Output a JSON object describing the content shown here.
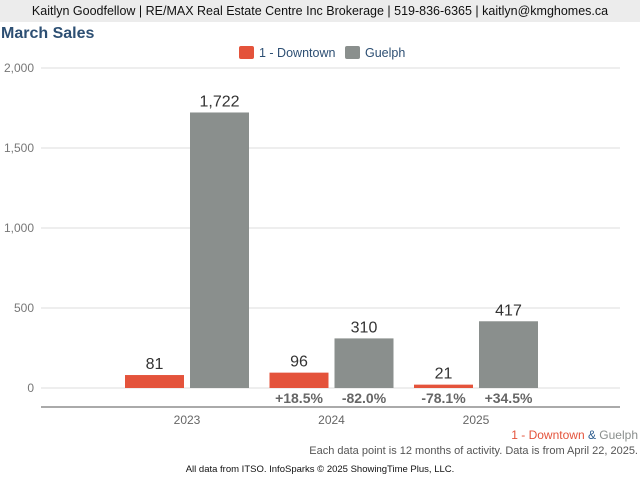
{
  "header": {
    "contact_line": "Kaitlyn Goodfellow | RE/MAX Real Estate Centre Inc Brokerage | 519-836-6365 | kaitlyn@kmghomes.ca"
  },
  "colors": {
    "downtown": "#e4533b",
    "guelph": "#8a8f8d",
    "title": "#2d4f73"
  },
  "chart_data": {
    "type": "bar",
    "title": "March Sales",
    "xlabel": "",
    "ylabel": "",
    "categories": [
      "2023",
      "2024",
      "2025"
    ],
    "series": [
      {
        "name": "1 - Downtown",
        "values": [
          81,
          96,
          21
        ],
        "labels": [
          "81",
          "96",
          "21"
        ],
        "changes": [
          "",
          "+18.5%",
          "-78.1%"
        ]
      },
      {
        "name": "Guelph",
        "values": [
          1722,
          310,
          417
        ],
        "labels": [
          "1,722",
          "310",
          "417"
        ],
        "changes": [
          "",
          "-82.0%",
          "+34.5%"
        ]
      }
    ],
    "ylim": [
      0,
      2000
    ],
    "yticks": [
      0,
      500,
      1000,
      1500,
      2000
    ],
    "ytick_labels": [
      "0",
      "500",
      "1,000",
      "1,500",
      "2,000"
    ],
    "grid": true,
    "legend_position": "top-center"
  },
  "footer": {
    "legend_downtown": "1 - Downtown",
    "legend_amp": " & ",
    "legend_guelph": "Guelph",
    "note": "Each data point is 12 months of activity. Data is from April 22, 2025.",
    "credit": "All data from ITSO. InfoSparks © 2025 ShowingTime Plus, LLC."
  }
}
